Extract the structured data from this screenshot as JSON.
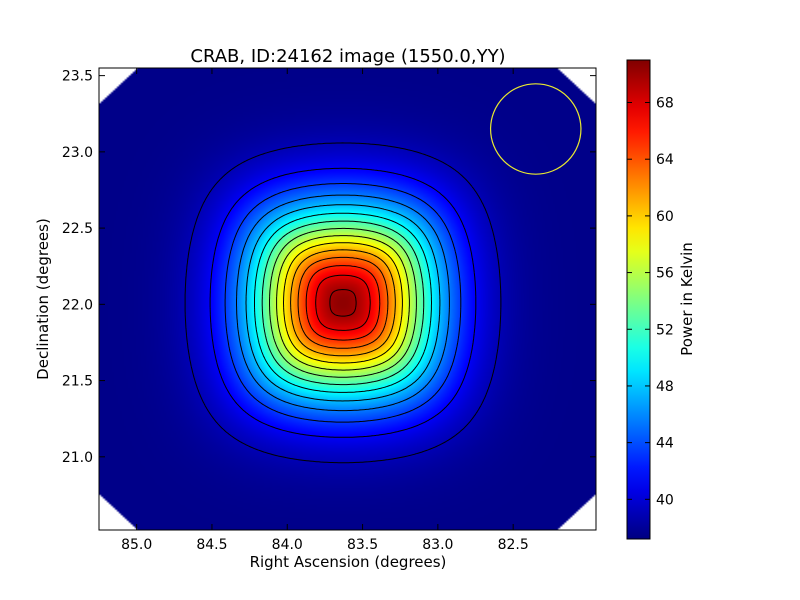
{
  "chart_data": {
    "type": "heatmap",
    "title": "CRAB, ID:24162 image (1550.0,YY)",
    "xlabel": "Right Ascension (degrees)",
    "ylabel": "Declination (degrees)",
    "colorbar_label": "Power in Kelvin",
    "colormap": "jet",
    "xlim": [
      85.25,
      81.95
    ],
    "ylim": [
      20.52,
      23.55
    ],
    "x_ticks": [
      85.0,
      84.5,
      84.0,
      83.5,
      83.0,
      82.5
    ],
    "x_tick_labels": [
      "85.0",
      "84.5",
      "84.0",
      "83.5",
      "83.0",
      "82.5"
    ],
    "y_ticks": [
      21.0,
      21.5,
      22.0,
      22.5,
      23.0,
      23.5
    ],
    "y_tick_labels": [
      "21.0",
      "21.5",
      "22.0",
      "22.5",
      "23.0",
      "23.5"
    ],
    "color_range": [
      37.2,
      71.0
    ],
    "colorbar_ticks": [
      40,
      44,
      48,
      52,
      56,
      60,
      64,
      68
    ],
    "colorbar_tick_labels": [
      "40",
      "44",
      "48",
      "52",
      "56",
      "60",
      "64",
      "68"
    ],
    "peak": {
      "ra": 83.63,
      "dec": 22.01,
      "value": 70.5
    },
    "background_level": 37.5,
    "contour_levels": [
      39.0,
      41.2,
      43.4,
      45.6,
      47.8,
      50.0,
      52.2,
      54.4,
      56.6,
      58.8,
      61.0,
      63.2,
      65.4,
      67.6,
      69.8
    ],
    "beam_circle": {
      "ra": 82.35,
      "dec": 23.15,
      "radius_deg": 0.3,
      "color": "#e8e830"
    },
    "grid": false,
    "colors": {
      "contour": "#000000",
      "axes": "#000000",
      "beam": "#e8e830"
    }
  }
}
